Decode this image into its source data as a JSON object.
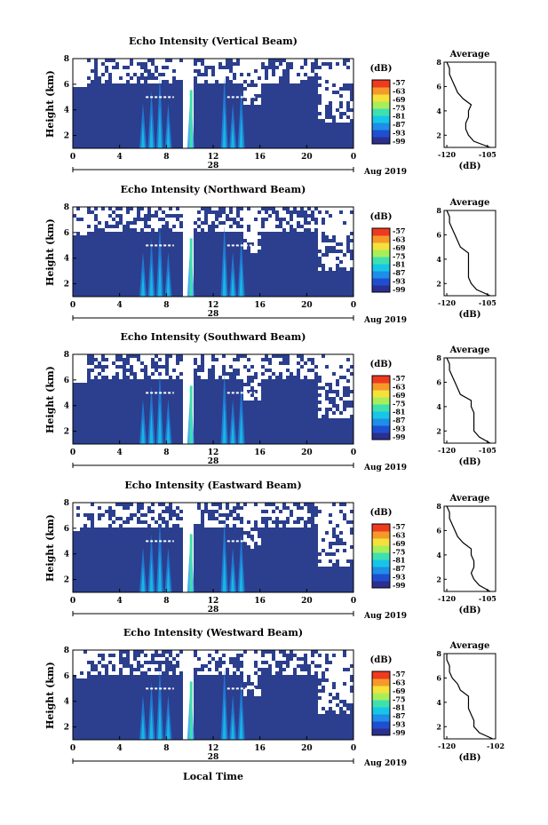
{
  "chart_data": [
    {
      "type": "heatmap",
      "title": "Echo Intensity (Vertical Beam)",
      "ylabel": "Height (km)",
      "xticks": [
        "0",
        "4",
        "8",
        "12",
        "16",
        "20",
        "0"
      ],
      "day_label": "28",
      "month_label": "Aug 2019",
      "ylim": [
        1,
        8
      ],
      "yticks": [
        "2",
        "4",
        "6",
        "8"
      ],
      "colorbar_unit": "(dB)",
      "colorbar_ticks": [
        "-57",
        "-63",
        "-69",
        "-75",
        "-81",
        "-87",
        "-93",
        "-99"
      ],
      "avg_title": "Average",
      "avg_xlabel": "(dB)",
      "avg_xticks": [
        "-120",
        "-105"
      ],
      "avg_yticks": [
        "2",
        "4",
        "6",
        "8"
      ],
      "avg_profile": {
        "height_km": [
          1,
          1.5,
          2,
          2.5,
          3,
          3.5,
          4,
          4.5,
          5,
          5.5,
          6,
          6.5,
          7,
          7.5,
          8
        ],
        "db": [
          -104,
          -110,
          -112,
          -113,
          -113,
          -112,
          -112,
          -111,
          -114,
          -116,
          -117,
          -118,
          -119,
          -119,
          -120
        ]
      }
    },
    {
      "type": "heatmap",
      "title": "Echo Intensity (Northward Beam)",
      "ylabel": "Height (km)",
      "xticks": [
        "0",
        "4",
        "8",
        "12",
        "16",
        "20",
        "0"
      ],
      "day_label": "28",
      "month_label": "Aug 2019",
      "ylim": [
        1,
        8
      ],
      "yticks": [
        "2",
        "4",
        "6",
        "8"
      ],
      "colorbar_unit": "(dB)",
      "colorbar_ticks": [
        "-57",
        "-63",
        "-69",
        "-75",
        "-81",
        "-87",
        "-93",
        "-99"
      ],
      "avg_title": "Average",
      "avg_xlabel": "(dB)",
      "avg_xticks": [
        "-120",
        "-105"
      ],
      "avg_yticks": [
        "2",
        "4",
        "6",
        "8"
      ],
      "avg_profile": {
        "height_km": [
          1,
          1.5,
          2,
          2.5,
          3,
          3.5,
          4,
          4.5,
          5,
          5.5,
          6,
          6.5,
          7,
          7.5,
          8
        ],
        "db": [
          -104,
          -109,
          -111,
          -112,
          -112,
          -112,
          -112,
          -112,
          -115,
          -116,
          -117,
          -118,
          -119,
          -119,
          -120
        ]
      }
    },
    {
      "type": "heatmap",
      "title": "Echo Intensity (Southward Beam)",
      "ylabel": "Height (km)",
      "xticks": [
        "0",
        "4",
        "8",
        "12",
        "16",
        "20",
        "0"
      ],
      "day_label": "28",
      "month_label": "Aug 2019",
      "ylim": [
        1,
        8
      ],
      "yticks": [
        "2",
        "4",
        "6",
        "8"
      ],
      "colorbar_unit": "(dB)",
      "colorbar_ticks": [
        "-57",
        "-63",
        "-69",
        "-75",
        "-81",
        "-87",
        "-93",
        "-99"
      ],
      "avg_title": "Average",
      "avg_xlabel": "(dB)",
      "avg_xticks": [
        "-120",
        "-105"
      ],
      "avg_yticks": [
        "2",
        "4",
        "6",
        "8"
      ],
      "avg_profile": {
        "height_km": [
          1,
          1.5,
          2,
          2.5,
          3,
          3.5,
          4,
          4.5,
          5,
          5.5,
          6,
          6.5,
          7,
          7.5,
          8
        ],
        "db": [
          -104,
          -108,
          -110,
          -110,
          -110,
          -110,
          -111,
          -111,
          -115,
          -116,
          -117,
          -118,
          -119,
          -119,
          -120
        ]
      }
    },
    {
      "type": "heatmap",
      "title": "Echo Intensity (Eastward Beam)",
      "ylabel": "Height (km)",
      "xticks": [
        "0",
        "4",
        "8",
        "12",
        "16",
        "20",
        "0"
      ],
      "day_label": "28",
      "month_label": "Aug 2019",
      "ylim": [
        1,
        8
      ],
      "yticks": [
        "2",
        "4",
        "6",
        "8"
      ],
      "colorbar_unit": "(dB)",
      "colorbar_ticks": [
        "-57",
        "-63",
        "-69",
        "-75",
        "-81",
        "-87",
        "-93",
        "-99"
      ],
      "avg_title": "Average",
      "avg_xlabel": "(dB)",
      "avg_xticks": [
        "-120",
        "-105"
      ],
      "avg_yticks": [
        "2",
        "4",
        "6",
        "8"
      ],
      "avg_profile": {
        "height_km": [
          1,
          1.5,
          2,
          2.5,
          3,
          3.5,
          4,
          4.5,
          5,
          5.5,
          6,
          6.5,
          7,
          7.5,
          8
        ],
        "db": [
          -104,
          -108,
          -110,
          -111,
          -110,
          -110,
          -111,
          -111,
          -114,
          -116,
          -117,
          -118,
          -119,
          -119,
          -120
        ]
      }
    },
    {
      "type": "heatmap",
      "title": "Echo Intensity (Westward Beam)",
      "ylabel": "Height (km)",
      "xticks": [
        "0",
        "4",
        "8",
        "12",
        "16",
        "20",
        "0"
      ],
      "day_label": "28",
      "month_label": "Aug 2019",
      "ylim": [
        1,
        8
      ],
      "yticks": [
        "2",
        "4",
        "6",
        "8"
      ],
      "colorbar_unit": "(dB)",
      "colorbar_ticks": [
        "-57",
        "-63",
        "-69",
        "-75",
        "-81",
        "-87",
        "-93",
        "-99"
      ],
      "avg_title": "Average",
      "avg_xlabel": "(dB)",
      "avg_xticks": [
        "-120",
        "-102"
      ],
      "avg_yticks": [
        "2",
        "4",
        "6",
        "8"
      ],
      "avg_profile": {
        "height_km": [
          1,
          1.5,
          2,
          2.5,
          3,
          3.5,
          4,
          4.5,
          5,
          5.5,
          6,
          6.5,
          7,
          7.5,
          8
        ],
        "db": [
          -103,
          -108,
          -110,
          -110,
          -111,
          -112,
          -112,
          -112,
          -115,
          -116,
          -118,
          -119,
          -119,
          -120,
          -120
        ]
      }
    }
  ],
  "shared_xlabel": "Local Time",
  "colors": {
    "background_fill": "#2b3f8e",
    "missing": "#ffffff",
    "colormap": [
      "#2b2f8f",
      "#1f4fd0",
      "#1e8ee8",
      "#17c6e6",
      "#3fe0b0",
      "#a8ee5a",
      "#f5e13a",
      "#f59a2a",
      "#ee3a1f"
    ]
  }
}
